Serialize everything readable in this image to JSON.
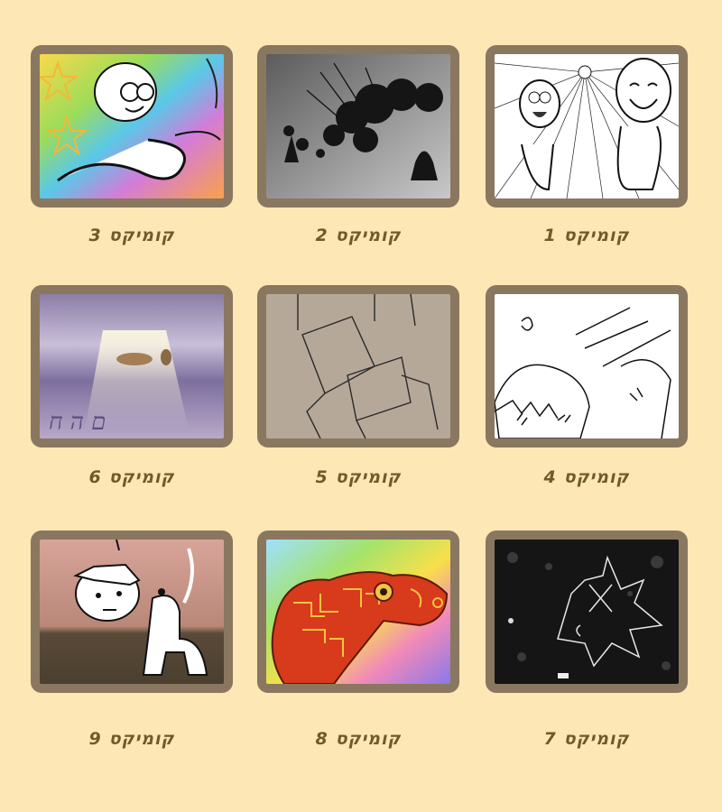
{
  "comics": [
    {
      "id": 1,
      "label": "קומיקס",
      "number": "1"
    },
    {
      "id": 2,
      "label": "קומיקס",
      "number": "2"
    },
    {
      "id": 3,
      "label": "קומיקס",
      "number": "3"
    },
    {
      "id": 4,
      "label": "קומיקס",
      "number": "4"
    },
    {
      "id": 5,
      "label": "קומיקס",
      "number": "5"
    },
    {
      "id": 6,
      "label": "קומיקס",
      "number": "6"
    },
    {
      "id": 7,
      "label": "קומיקס",
      "number": "7"
    },
    {
      "id": 8,
      "label": "קומיקס",
      "number": "8"
    },
    {
      "id": 9,
      "label": "קומיקס",
      "number": "9"
    }
  ],
  "colors": {
    "background": "#fde7b4",
    "frame": "#8a7760",
    "label": "#6e5a2c"
  }
}
